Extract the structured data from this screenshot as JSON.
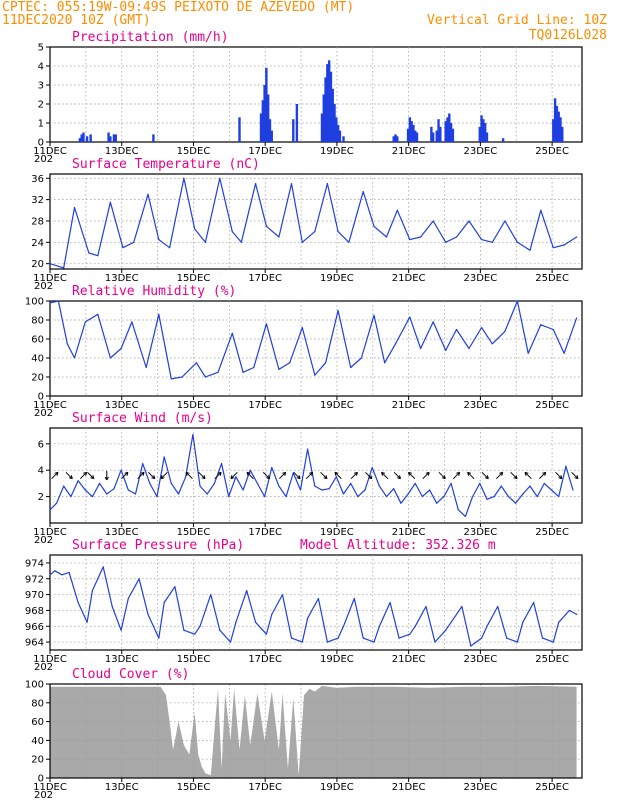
{
  "header": {
    "line1_left": "CPTEC:  055:19W-09:49S  PEIXOTO DE AZEVEDO (MT)",
    "line2_left": "11DEC2020 10Z (GMT)",
    "line2_right": "Vertical Grid Line: 10Z",
    "line3_right": "TQ0126L028"
  },
  "colors": {
    "header": "#ff8c00",
    "panel_title": "#e8008c",
    "series": "#1f3fe0",
    "cloud": "#a9a9a9",
    "arrow": "#000000"
  },
  "x_axis": {
    "start_day": 11,
    "start_hour": 10,
    "end_day": 26,
    "end_hour": 6,
    "labels": [
      "11DEC",
      "13DEC",
      "15DEC",
      "17DEC",
      "19DEC",
      "21DEC",
      "23DEC",
      "25DEC"
    ],
    "label_days": [
      11,
      13,
      15,
      17,
      19,
      21,
      23,
      25
    ],
    "year_stub": "202"
  },
  "chart_data": [
    {
      "id": "precip",
      "type": "bar",
      "title": "Precipitation (mm/h)",
      "ylim": [
        0,
        5
      ],
      "yticks": [
        0,
        1,
        2,
        3,
        4,
        5
      ],
      "color": "#1f3fe0",
      "x": [
        12.25,
        12.3,
        12.35,
        12.45,
        12.55,
        13.05,
        13.1,
        13.2,
        13.25,
        14.3,
        16.7,
        17.3,
        17.35,
        17.4,
        17.45,
        17.5,
        17.55,
        17.6,
        18.2,
        18.3,
        19.0,
        19.05,
        19.1,
        19.15,
        19.2,
        19.25,
        19.3,
        19.35,
        19.4,
        19.45,
        19.5,
        19.6,
        21.0,
        21.05,
        21.1,
        21.4,
        21.45,
        21.5,
        21.55,
        21.6,
        21.65,
        22.05,
        22.1,
        22.2,
        22.25,
        22.3,
        22.45,
        22.5,
        22.55,
        22.6,
        22.65,
        23.4,
        23.45,
        23.5,
        23.55,
        23.6,
        24.05,
        25.45,
        25.5,
        25.55,
        25.6,
        25.65,
        25.7
      ],
      "values": [
        0.2,
        0.4,
        0.5,
        0.3,
        0.4,
        0.5,
        0.3,
        0.4,
        0.4,
        0.4,
        1.3,
        1.5,
        2.2,
        3.0,
        3.9,
        2.5,
        1.2,
        0.6,
        1.2,
        2.0,
        1.5,
        2.5,
        3.4,
        4.1,
        4.3,
        3.7,
        2.8,
        2.0,
        1.3,
        0.9,
        0.6,
        0.3,
        0.3,
        0.4,
        0.3,
        0.7,
        1.3,
        1.1,
        0.9,
        0.6,
        0.5,
        0.8,
        0.5,
        0.6,
        1.2,
        0.8,
        1.1,
        1.3,
        1.5,
        1.0,
        0.7,
        0.8,
        1.4,
        1.2,
        1.0,
        0.5,
        0.2,
        1.2,
        2.3,
        1.9,
        1.6,
        1.3,
        0.8
      ]
    },
    {
      "id": "temp",
      "type": "line",
      "title": "Surface Temperature (nC)",
      "ylim": [
        19,
        36.8
      ],
      "yticks": [
        20,
        24,
        28,
        32,
        36
      ],
      "color": "#1f3fe0",
      "x": [
        11.42,
        11.8,
        12.1,
        12.5,
        12.75,
        13.1,
        13.45,
        13.75,
        14.15,
        14.45,
        14.75,
        15.15,
        15.45,
        15.75,
        16.15,
        16.5,
        16.75,
        17.15,
        17.45,
        17.8,
        18.15,
        18.45,
        18.8,
        19.15,
        19.45,
        19.75,
        20.15,
        20.45,
        20.8,
        21.1,
        21.45,
        21.75,
        22.1,
        22.45,
        22.75,
        23.1,
        23.45,
        23.75,
        24.1,
        24.45,
        24.8,
        25.1,
        25.45,
        25.75,
        26.1
      ],
      "values": [
        20.0,
        19.2,
        30.5,
        22.0,
        21.5,
        31.5,
        23.0,
        24.0,
        33.0,
        24.5,
        23.0,
        36.0,
        26.5,
        24.0,
        36.0,
        26.0,
        24.0,
        35.0,
        27.0,
        25.0,
        35.0,
        24.0,
        26.0,
        35.0,
        26.0,
        24.0,
        33.5,
        27.0,
        25.0,
        30.0,
        24.5,
        25.0,
        28.0,
        24.0,
        25.0,
        28.0,
        24.5,
        24.0,
        28.0,
        24.0,
        22.5,
        30.0,
        23.0,
        23.5,
        25.0
      ]
    },
    {
      "id": "rh",
      "type": "line",
      "title": "Relative Humidity (%)",
      "ylim": [
        0,
        100
      ],
      "yticks": [
        0,
        20,
        40,
        60,
        80,
        100
      ],
      "color": "#1f3fe0",
      "x": [
        11.42,
        11.65,
        11.9,
        12.1,
        12.4,
        12.75,
        13.1,
        13.4,
        13.7,
        14.1,
        14.45,
        14.8,
        15.1,
        15.5,
        15.75,
        16.1,
        16.5,
        16.8,
        17.1,
        17.45,
        17.8,
        18.1,
        18.45,
        18.8,
        19.1,
        19.45,
        19.8,
        20.1,
        20.45,
        20.75,
        21.05,
        21.45,
        21.75,
        22.1,
        22.45,
        22.75,
        23.1,
        23.45,
        23.75,
        24.1,
        24.45,
        24.75,
        25.1,
        25.45,
        25.75,
        26.1
      ],
      "values": [
        98,
        100,
        55,
        40,
        78,
        86,
        40,
        50,
        78,
        30,
        86,
        18,
        20,
        35,
        20,
        25,
        66,
        25,
        30,
        76,
        28,
        35,
        72,
        22,
        35,
        90,
        30,
        40,
        85,
        35,
        55,
        83,
        50,
        78,
        48,
        70,
        50,
        72,
        55,
        68,
        100,
        45,
        75,
        70,
        45,
        82
      ]
    },
    {
      "id": "wind",
      "type": "line",
      "title": "Surface Wind (m/s)",
      "ylim": [
        0,
        7.2
      ],
      "yticks": [
        2,
        4,
        6
      ],
      "color": "#1f3fe0",
      "x": [
        11.42,
        11.6,
        11.8,
        12.0,
        12.2,
        12.4,
        12.6,
        12.8,
        13.0,
        13.2,
        13.4,
        13.6,
        13.8,
        14.0,
        14.2,
        14.4,
        14.6,
        14.8,
        15.0,
        15.2,
        15.4,
        15.6,
        15.8,
        16.0,
        16.2,
        16.4,
        16.6,
        16.8,
        17.0,
        17.2,
        17.4,
        17.6,
        17.8,
        18.0,
        18.2,
        18.4,
        18.6,
        18.8,
        19.0,
        19.2,
        19.4,
        19.6,
        19.8,
        20.0,
        20.2,
        20.4,
        20.6,
        20.8,
        21.0,
        21.2,
        21.4,
        21.6,
        21.8,
        22.0,
        22.2,
        22.4,
        22.6,
        22.8,
        23.0,
        23.2,
        23.4,
        23.6,
        23.8,
        24.0,
        24.2,
        24.4,
        24.6,
        24.8,
        25.0,
        25.2,
        25.4,
        25.6,
        25.8,
        26.0
      ],
      "values": [
        1.0,
        1.5,
        2.8,
        2.0,
        3.2,
        2.5,
        2.0,
        3.0,
        2.2,
        2.6,
        4.0,
        2.5,
        2.2,
        4.5,
        3.0,
        2.0,
        5.0,
        3.0,
        2.2,
        3.5,
        6.7,
        2.8,
        2.2,
        3.0,
        4.5,
        2.0,
        3.5,
        2.5,
        4.0,
        3.0,
        2.0,
        4.2,
        2.8,
        2.0,
        3.8,
        2.5,
        5.6,
        2.8,
        2.5,
        2.6,
        3.5,
        2.2,
        3.0,
        2.0,
        2.5,
        4.2,
        2.8,
        2.0,
        2.6,
        1.5,
        2.2,
        3.0,
        2.0,
        2.5,
        1.5,
        2.0,
        3.0,
        1.0,
        0.5,
        2.0,
        3.0,
        1.8,
        2.0,
        2.8,
        2.0,
        1.5,
        2.2,
        2.8,
        2.0,
        3.0,
        2.5,
        2.0,
        4.3,
        2.5
      ],
      "arrows_x": [
        11.55,
        11.95,
        12.35,
        12.55,
        13.0,
        13.5,
        13.95,
        14.25,
        14.6,
        15.3,
        15.65,
        16.1,
        16.55,
        17.0,
        17.45,
        17.9,
        18.3,
        18.65,
        19.05,
        19.45,
        19.9,
        20.3,
        20.75,
        21.1,
        21.5,
        21.9,
        22.35,
        22.75,
        23.15,
        23.55,
        23.95,
        24.35,
        24.75,
        25.15,
        25.6,
        26.05
      ],
      "arrows_dir": [
        45,
        315,
        45,
        315,
        270,
        45,
        45,
        315,
        225,
        135,
        315,
        45,
        225,
        135,
        315,
        45,
        315,
        45,
        315,
        135,
        45,
        315,
        135,
        315,
        135,
        45,
        315,
        45,
        135,
        315,
        45,
        315,
        135,
        45,
        315,
        315
      ]
    },
    {
      "id": "pressure",
      "type": "line",
      "title": "Surface Pressure (hPa)",
      "extra_label": "Model Altitude: 352.326 m",
      "ylim": [
        963,
        975
      ],
      "yticks": [
        964,
        966,
        968,
        970,
        972,
        974
      ],
      "color": "#1f3fe0",
      "x": [
        11.42,
        11.55,
        11.75,
        11.95,
        12.2,
        12.45,
        12.6,
        12.9,
        13.15,
        13.4,
        13.6,
        13.9,
        14.15,
        14.45,
        14.6,
        14.9,
        15.15,
        15.45,
        15.6,
        15.9,
        16.15,
        16.45,
        16.6,
        16.9,
        17.15,
        17.45,
        17.6,
        17.9,
        18.15,
        18.45,
        18.6,
        18.9,
        19.15,
        19.45,
        19.6,
        19.9,
        20.15,
        20.45,
        20.6,
        20.9,
        21.15,
        21.45,
        21.6,
        21.9,
        22.15,
        22.45,
        22.6,
        22.9,
        23.15,
        23.45,
        23.6,
        23.9,
        24.15,
        24.45,
        24.6,
        24.9,
        25.15,
        25.45,
        25.6,
        25.9,
        26.1
      ],
      "values": [
        972.5,
        973.0,
        972.5,
        972.8,
        969.0,
        966.5,
        970.5,
        973.5,
        968.5,
        965.5,
        969.5,
        972.0,
        967.5,
        964.5,
        969.0,
        971.0,
        965.5,
        965.0,
        966.0,
        970.0,
        965.5,
        964.0,
        966.5,
        970.5,
        966.5,
        965.0,
        967.5,
        970.0,
        964.5,
        964.0,
        967.0,
        969.5,
        964.0,
        964.5,
        966.0,
        969.5,
        964.5,
        964.0,
        966.0,
        969.0,
        964.5,
        965.0,
        966.0,
        968.5,
        964.0,
        965.5,
        966.5,
        968.5,
        963.5,
        964.5,
        966.0,
        968.5,
        964.5,
        964.0,
        966.5,
        969.0,
        964.5,
        964.0,
        966.5,
        968.0,
        967.5
      ]
    },
    {
      "id": "cloud",
      "type": "area",
      "title": "Cloud Cover (%)",
      "ylim": [
        0,
        100
      ],
      "yticks": [
        0,
        20,
        40,
        60,
        80,
        100
      ],
      "color": "#a9a9a9",
      "x": [
        11.42,
        14.5,
        14.65,
        14.75,
        14.85,
        15.0,
        15.15,
        15.3,
        15.45,
        15.55,
        15.65,
        15.75,
        15.9,
        16.0,
        16.1,
        16.2,
        16.3,
        16.45,
        16.55,
        16.7,
        16.85,
        17.0,
        17.2,
        17.4,
        17.6,
        17.8,
        17.9,
        18.05,
        18.2,
        18.35,
        18.5,
        18.65,
        18.8,
        19.0,
        19.4,
        20.0,
        21.0,
        22.0,
        23.0,
        24.0,
        25.0,
        26.1
      ],
      "values": [
        97,
        97,
        88,
        60,
        30,
        60,
        35,
        25,
        70,
        25,
        12,
        5,
        3,
        50,
        95,
        10,
        90,
        40,
        95,
        30,
        88,
        35,
        90,
        40,
        92,
        30,
        90,
        10,
        85,
        3,
        88,
        95,
        92,
        98,
        96,
        97,
        97,
        96,
        97,
        97,
        98,
        97
      ]
    }
  ]
}
